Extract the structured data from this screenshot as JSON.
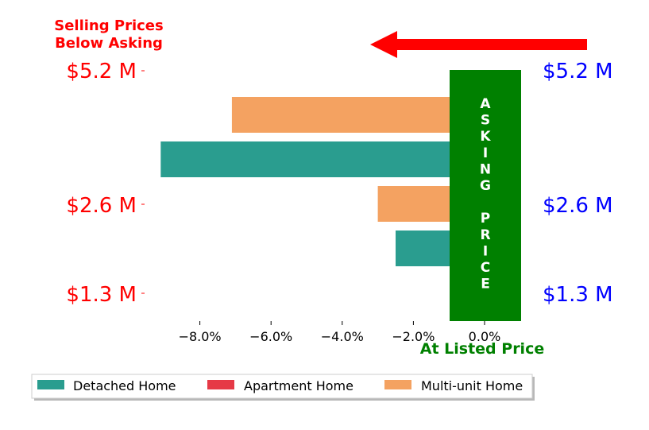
{
  "chart_data": {
    "type": "bar",
    "orientation": "horizontal",
    "x": {
      "label": "At Listed Price",
      "range": [
        -10,
        1
      ],
      "ticks": [
        -8,
        -6,
        -4,
        -2,
        0
      ],
      "tick_labels": [
        "−8.0%",
        "−6.0%",
        "−4.0%",
        "−2.0%",
        "0.0%"
      ]
    },
    "y_left_labels": [
      "$5.2 M",
      "$2.6 M",
      "$1.3 M"
    ],
    "y_right_labels": [
      "$5.2 M",
      "$2.6 M",
      "$1.3 M"
    ],
    "annotations": {
      "top_left": [
        "Selling Prices",
        "Below Asking"
      ],
      "asking_price": [
        "A",
        "S",
        "K",
        "I",
        "N",
        "G",
        "",
        "P",
        "R",
        "I",
        "C",
        "E"
      ]
    },
    "series": [
      {
        "name": "Detached Home",
        "color": "#2a9d8f"
      },
      {
        "name": "Apartment Home",
        "color": "#e63946"
      },
      {
        "name": "Multi-unit Home",
        "color": "#f4a261"
      }
    ],
    "bars": [
      {
        "series": 2,
        "value": -7.1
      },
      {
        "series": 0,
        "value": -9.1
      },
      {
        "series": 2,
        "value": -3.0
      },
      {
        "series": 0,
        "value": -2.5
      },
      {
        "series": 1,
        "value": -0.2
      }
    ],
    "legend": "bottom-left",
    "grid": false,
    "colors": {
      "red": "#ff0000",
      "blue": "#0000ff",
      "green": "#008000"
    }
  }
}
